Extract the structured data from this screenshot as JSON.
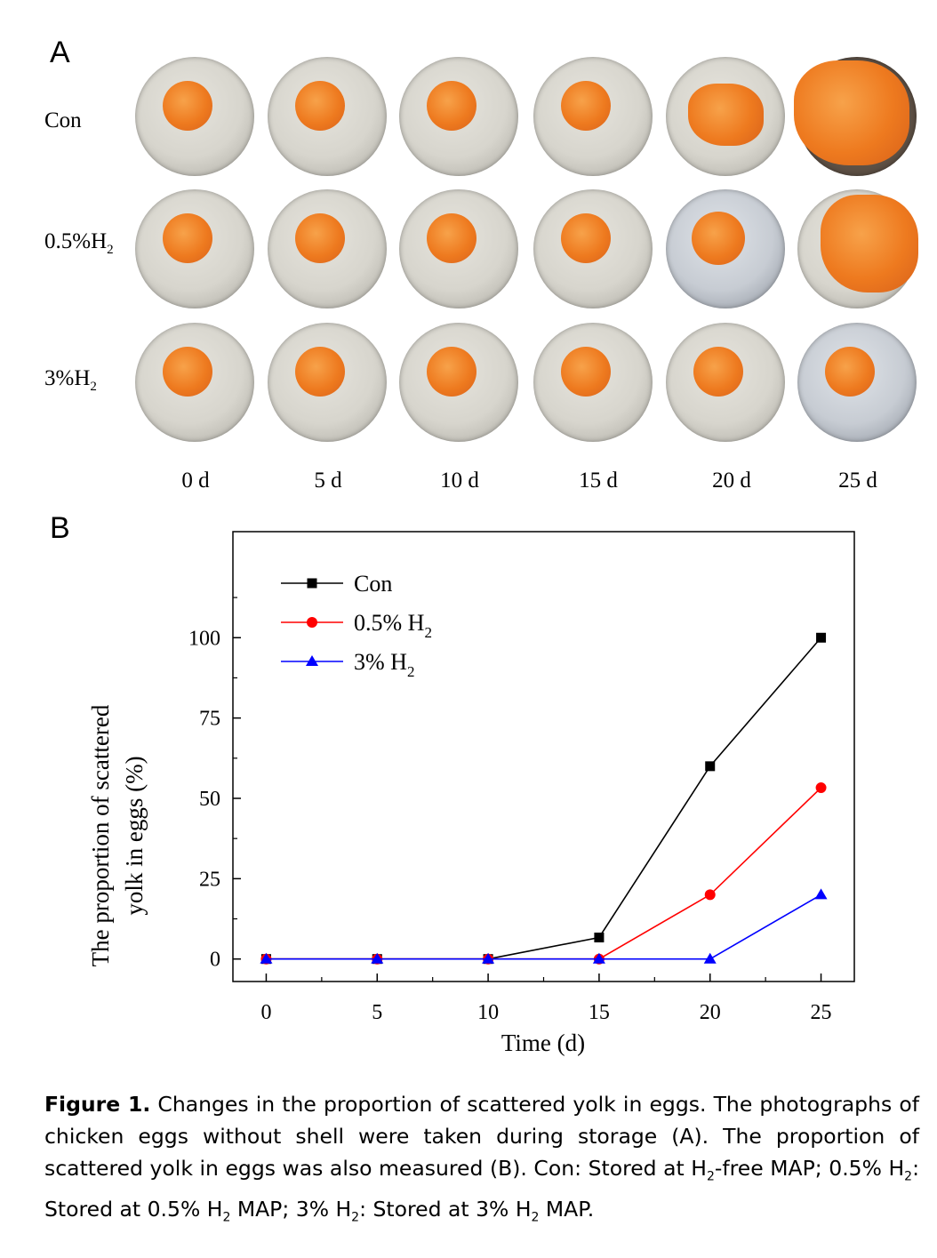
{
  "panel_a": {
    "label": "A",
    "rows": [
      {
        "label_main": "Con",
        "label_sub": ""
      },
      {
        "label_main": "0.5%H",
        "label_sub": "2"
      },
      {
        "label_main": "3%H",
        "label_sub": "2"
      }
    ],
    "days": [
      "0 d",
      "5 d",
      "10 d",
      "15 d",
      "20 d",
      "25 d"
    ]
  },
  "panel_b": {
    "label": "B"
  },
  "chart_data": {
    "type": "line",
    "title": "",
    "xlabel": "Time (d)",
    "ylabel_line1": "The proportion of  scattered",
    "ylabel_line2": "yolk in eggs (%)",
    "x": [
      0,
      5,
      10,
      15,
      20,
      25
    ],
    "xlim": [
      -1.5,
      26.5
    ],
    "ylim": [
      -7,
      133
    ],
    "xticks": [
      "0",
      "5",
      "10",
      "15",
      "20",
      "25"
    ],
    "yticks": [
      "0",
      "25",
      "50",
      "75",
      "100"
    ],
    "legend_position": "top-left",
    "series": [
      {
        "name": "Con",
        "name_main": "Con",
        "name_sub": "",
        "color": "#000000",
        "marker": "square",
        "values": [
          0,
          0,
          0,
          6.7,
          60,
          100
        ]
      },
      {
        "name": "0.5% H2",
        "name_main": "0.5% H",
        "name_sub": "2",
        "color": "#ff0000",
        "marker": "circle",
        "values": [
          0,
          0,
          0,
          0,
          20,
          53.3
        ]
      },
      {
        "name": "3% H2",
        "name_main": "3% H",
        "name_sub": "2",
        "color": "#0000ff",
        "marker": "triangle",
        "values": [
          0,
          0,
          0,
          0,
          0,
          20
        ]
      }
    ]
  },
  "caption": {
    "figure_label": "Figure 1.",
    "text_1": " Changes in the proportion of scattered yolk in eggs. The photographs of chicken eggs without shell were taken during storage (A). The proportion of scattered yolk in eggs was also measured (B). Con: Stored at H",
    "sub_1": "2",
    "text_2": "-free MAP; 0.5% H",
    "sub_2": "2",
    "text_3": ": Stored at 0.5% H",
    "sub_3": "2",
    "text_4": " MAP; 3% H",
    "sub_4": "2",
    "text_5": ": Stored at 3% H",
    "sub_5": "2",
    "text_6": " MAP."
  }
}
